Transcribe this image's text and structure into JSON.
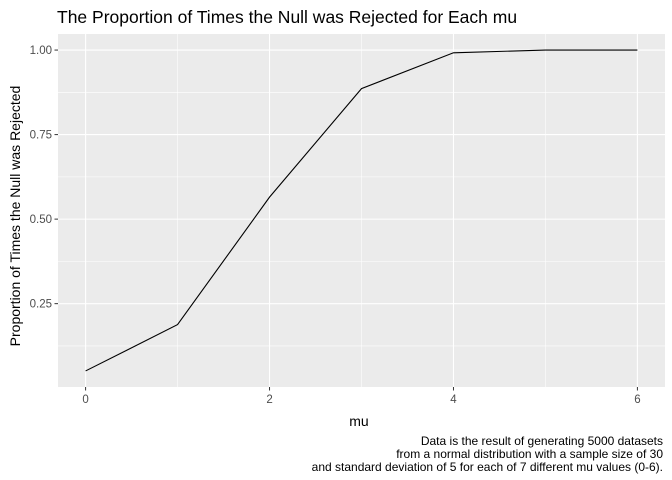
{
  "chart_data": {
    "type": "line",
    "title": "The Proportion of Times the Null was Rejected for Each mu",
    "xlabel": "mu",
    "ylabel": "Proportion of Times the Null was Rejected",
    "x": [
      0,
      1,
      2,
      3,
      4,
      5,
      6
    ],
    "series": [
      {
        "values": [
          0.051,
          0.188,
          0.565,
          0.886,
          0.992,
          1.0,
          1.0
        ]
      }
    ],
    "x_ticks": [
      0,
      2,
      4,
      6
    ],
    "x_tick_labels": [
      "0",
      "2",
      "4",
      "6"
    ],
    "y_ticks": [
      0.25,
      0.5,
      0.75,
      1.0
    ],
    "y_tick_labels": [
      "0.25",
      "0.50",
      "0.75",
      "1.00"
    ],
    "xlim": [
      -0.3,
      6.3
    ],
    "ylim": [
      0.0035,
      1.0475
    ],
    "grid": true,
    "panel_background": "#ebebeb",
    "grid_color": "#ffffff",
    "line_color": "#000000",
    "caption": [
      "Data is the result of generating 5000 datasets",
      "from a normal distribution with a sample size of 30",
      "and standard deviation of 5 for each of 7 different mu values (0-6)."
    ]
  }
}
